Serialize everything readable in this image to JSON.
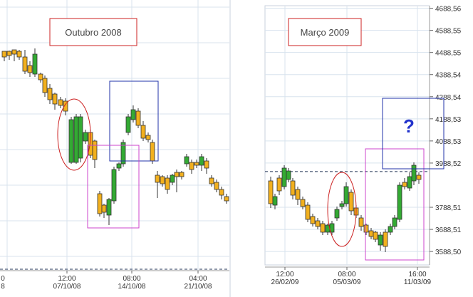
{
  "chart_data": [
    {
      "type": "candlestick",
      "title": "Outubro 2008",
      "x_tick_labels": [
        {
          "time": "12:00",
          "date": "07/10/08"
        },
        {
          "time": "08:00",
          "date": "14/10/08"
        },
        {
          "time": "04:00",
          "date": "21/10/08"
        }
      ],
      "y_tick_labels": [],
      "grid": true,
      "candles": [
        {
          "x": "",
          "open": 0,
          "high": 0,
          "low": 0,
          "close": 0,
          "dir": "down"
        }
      ],
      "annotations": [
        {
          "shape": "ellipse",
          "color": "#cc2222",
          "note": ""
        },
        {
          "shape": "rectangle",
          "color": "#2233aa",
          "note": ""
        },
        {
          "shape": "rectangle",
          "color": "#cc44cc",
          "note": ""
        }
      ]
    },
    {
      "type": "candlestick",
      "title": "Março 2009",
      "x_tick_labels": [
        {
          "time": "12:00",
          "date": "26/02/09"
        },
        {
          "time": "08:00",
          "date": "05/03/09"
        },
        {
          "time": "16:00",
          "date": "11/03/09"
        }
      ],
      "y_tick_labels": [
        "4688,56",
        "4588,55",
        "4488,55",
        "4388,54",
        "4288,54",
        "4188,53",
        "4088,53",
        "3988,52",
        "3788,51",
        "3688,51",
        "3588,50"
      ],
      "ylim": [
        3560,
        4700
      ],
      "grid": true,
      "dashed_level": 3950,
      "candles": [],
      "annotations": [
        {
          "shape": "ellipse",
          "color": "#cc2222",
          "note": ""
        },
        {
          "shape": "rectangle",
          "color": "#cc44cc",
          "note": ""
        },
        {
          "shape": "rectangle",
          "color": "#2233aa",
          "note": "?"
        }
      ]
    }
  ],
  "colors": {
    "up_candle": "#33aa33",
    "down_candle": "#f2b01e",
    "candle_border": "#333333",
    "grid": "#d8e3ee",
    "axis_text": "#333333"
  }
}
